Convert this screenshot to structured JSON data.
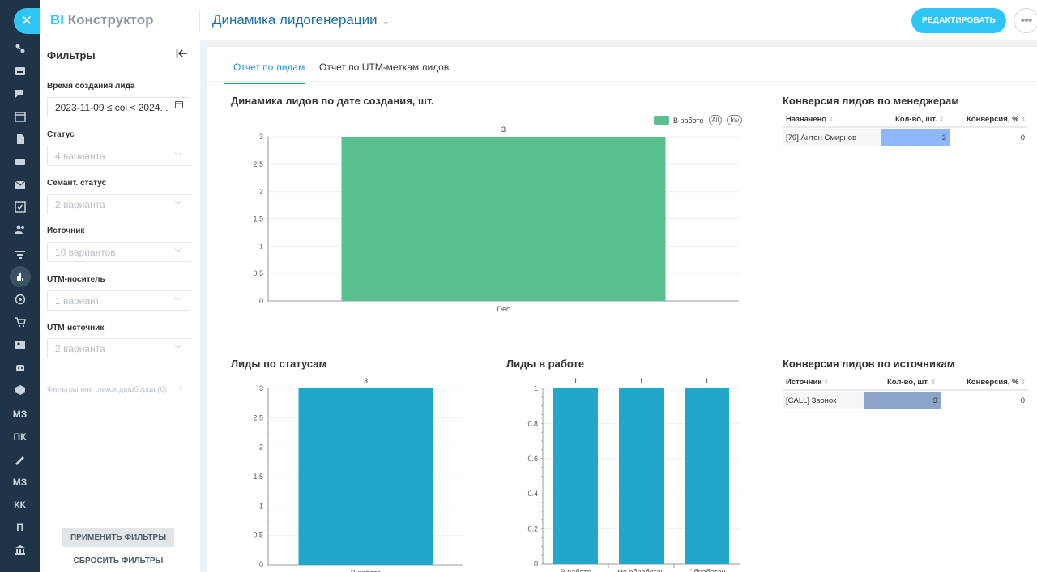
{
  "rail": {
    "close_icon": "close-icon",
    "items": [
      "hierarchy-icon",
      "inbox-icon",
      "chat-icon",
      "calendar-icon",
      "document-icon",
      "drive-icon",
      "mail-icon",
      "tasks-icon",
      "users-icon",
      "funnel-icon",
      "analytics-icon",
      "target-icon",
      "cart-icon",
      "contact-card-icon",
      "robot-icon",
      "box-icon"
    ],
    "letter_items": [
      "МЗ",
      "ПК",
      "МЗ",
      "КК",
      "П"
    ],
    "more_items": [
      "signature-icon",
      "bank-icon"
    ]
  },
  "header": {
    "brand_prefix": "BI",
    "brand_name": "Конструктор",
    "dashboard_title": "Динамика лидогенерации",
    "edit_button": "РЕДАКТИРОВАТЬ",
    "more_button": "•••"
  },
  "filters": {
    "title": "Фильтры",
    "fields": [
      {
        "label": "Время создания лида",
        "value": "2023-11-09 ≤ col < 2024..."
      },
      {
        "label": "Статус",
        "placeholder": "4 варианта"
      },
      {
        "label": "Семант. статус",
        "placeholder": "2 варианта"
      },
      {
        "label": "Источник",
        "placeholder": "10 вариантов"
      },
      {
        "label": "UTM-носитель",
        "placeholder": "1 вариант"
      },
      {
        "label": "UTM-источник",
        "placeholder": "2 варианта"
      }
    ],
    "outside_label": "Фильтры вне рамок дашборда (0)",
    "apply_button": "ПРИМЕНИТЬ ФИЛЬТРЫ",
    "reset_button": "СБРОСИТЬ ФИЛЬТРЫ"
  },
  "tabs": [
    "Отчет по лидам",
    "Отчет по UTM-меткам лидов"
  ],
  "colors": {
    "accent": "#2fc6f6",
    "green": "#5ac18e",
    "blue_bar": "#20a7c9",
    "table_bar": "#8eb8fb",
    "table_bar2": "#8ba3c7"
  },
  "chart_data": [
    {
      "type": "bar",
      "title": "Динамика лидов по дате создания, шт.",
      "categories": [
        "Dec"
      ],
      "series": [
        {
          "name": "В работе",
          "values": [
            3
          ]
        }
      ],
      "legend_extras": [
        "All",
        "Inv"
      ],
      "yticks": [
        "0",
        "0.5",
        "1",
        "1.5",
        "2",
        "2.5",
        "3"
      ],
      "ylim": [
        0,
        3
      ],
      "data_labels": [
        "3"
      ],
      "grid": true,
      "legend": "top-right"
    },
    {
      "type": "bar",
      "title": "Лиды по статусам",
      "categories": [
        "В работе"
      ],
      "values": [
        3
      ],
      "yticks": [
        "0",
        "0.5",
        "1",
        "1.5",
        "2",
        "2.5",
        "3"
      ],
      "ylim": [
        0,
        3
      ],
      "data_labels": [
        "3"
      ],
      "grid": true
    },
    {
      "type": "bar",
      "title": "Лиды в работе",
      "categories": [
        "В работе",
        "Не обработан",
        "Обработан"
      ],
      "values": [
        1,
        1,
        1
      ],
      "yticks": [
        "0",
        "0.2",
        "0.4",
        "0.6",
        "0.8",
        "1"
      ],
      "ylim": [
        0,
        1
      ],
      "data_labels": [
        "1",
        "1",
        "1"
      ],
      "grid": true
    },
    {
      "type": "table",
      "title": "Конверсия лидов по менеджерам",
      "columns": [
        "Назначено",
        "Кол-во, шт.",
        "Конверсия, %"
      ],
      "rows": [
        [
          "[79] Антон Смирнов",
          "3",
          "0"
        ]
      ]
    },
    {
      "type": "table",
      "title": "Конверсия лидов по источникам",
      "columns": [
        "Источник",
        "Кол-во, шт.",
        "Конверсия, %"
      ],
      "rows": [
        [
          "[CALL] Звонок",
          "3",
          "0"
        ]
      ]
    }
  ]
}
